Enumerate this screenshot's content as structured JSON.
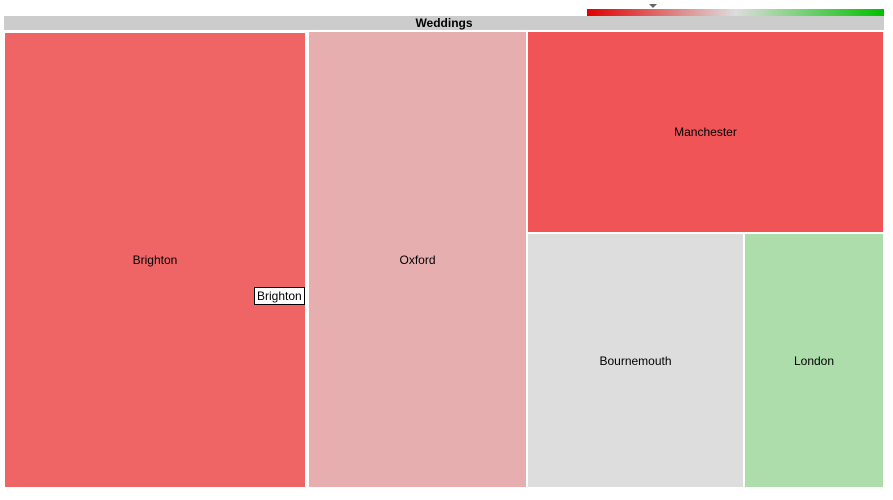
{
  "chart_data": {
    "type": "treemap",
    "title": "Weddings",
    "color_scale": {
      "low_color": "#e00000",
      "mid_color": "#dddddd",
      "high_color": "#00c000"
    },
    "nodes": [
      {
        "label": "Brighton",
        "color": "#ef6565"
      },
      {
        "label": "Oxford",
        "color": "#e6aeae"
      },
      {
        "label": "Manchester",
        "color": "#f05456"
      },
      {
        "label": "Bournemouth",
        "color": "#dddddd"
      },
      {
        "label": "London",
        "color": "#acddab"
      }
    ]
  },
  "tooltip": {
    "text": "Brighton"
  }
}
